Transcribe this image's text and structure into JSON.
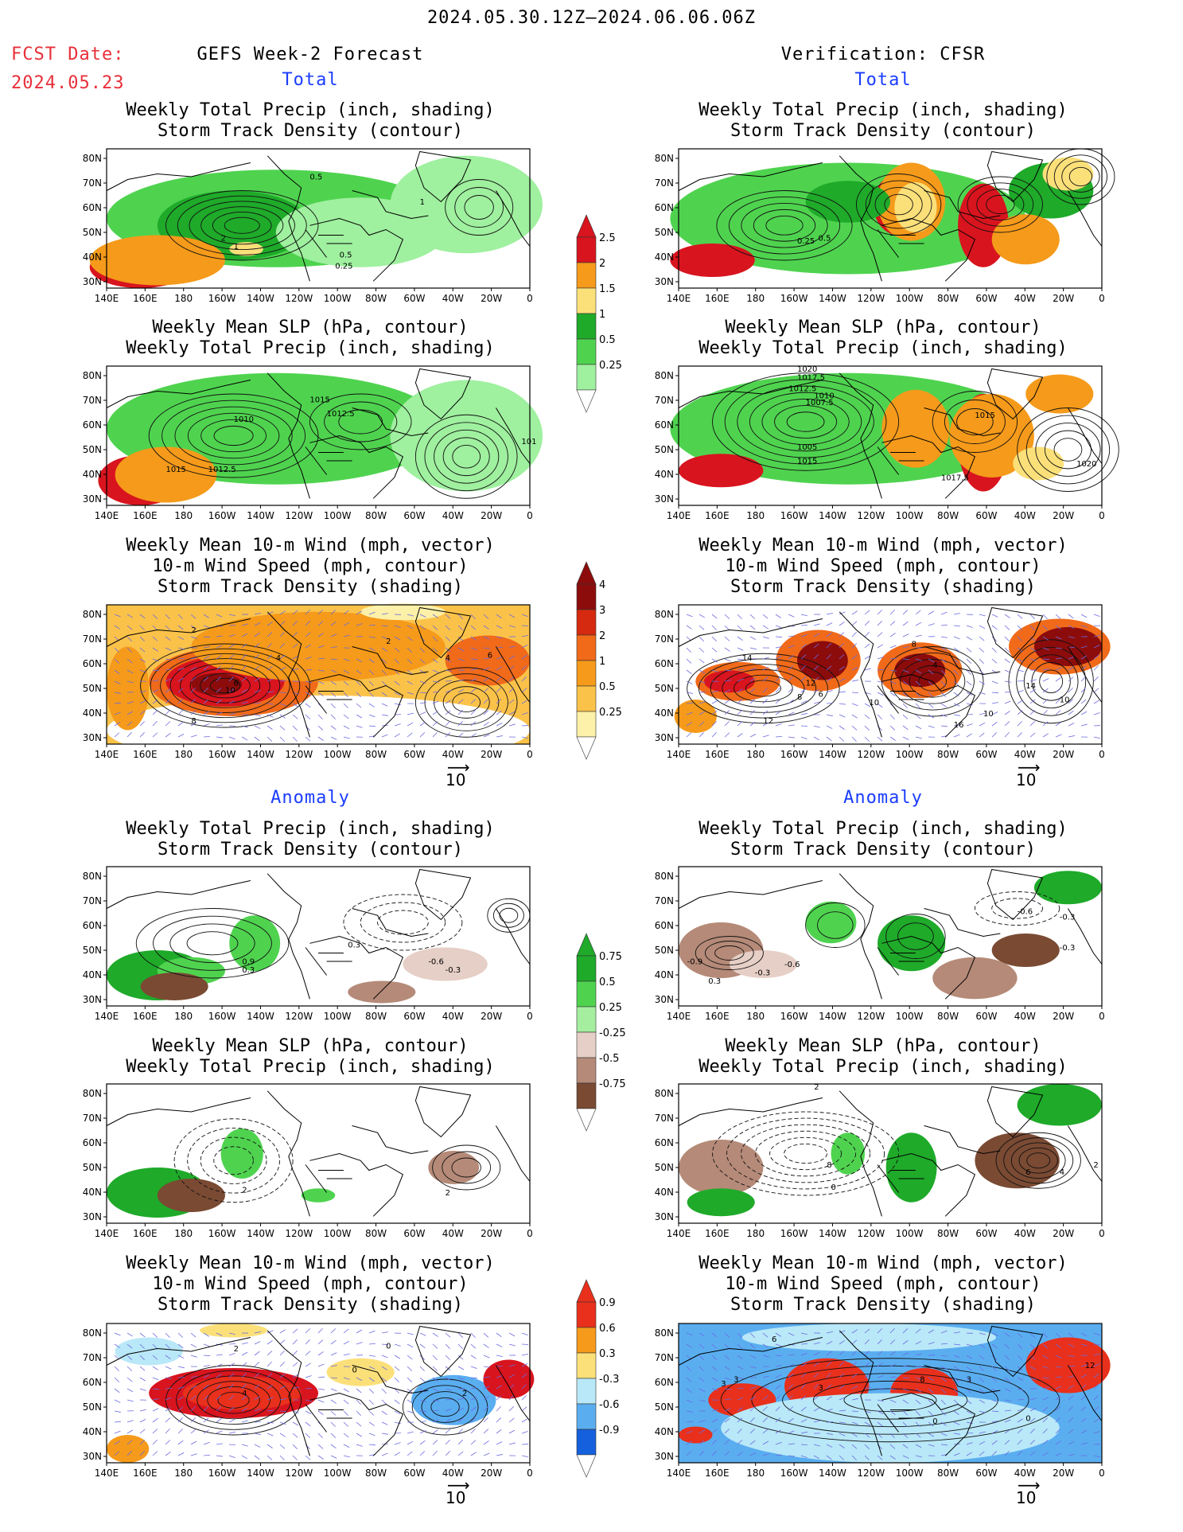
{
  "header": {
    "date_range": "2024.05.30.12Z–2024.06.06.06Z",
    "fcst_label": "FCST Date:",
    "fcst_date": "2024.05.23",
    "left_title": "GEFS Week-2 Forecast",
    "right_title": "Verification: CFSR"
  },
  "sections": {
    "total": "Total",
    "anomaly": "Anomaly"
  },
  "panel_titles": {
    "precip_storm": "Weekly Total Precip (inch, shading)\nStorm Track Density (contour)",
    "slp_precip": "Weekly Mean SLP (hPa, contour)\nWeekly Total Precip (inch, shading)",
    "wind_storm": "Weekly Mean 10-m Wind (mph, vector)\n10-m Wind Speed (mph, contour)\nStorm Track Density (shading)"
  },
  "axes": {
    "lon_ticks": [
      "140E",
      "160E",
      "180",
      "160W",
      "140W",
      "120W",
      "100W",
      "80W",
      "60W",
      "40W",
      "20W",
      "0"
    ],
    "lat_ticks": [
      "80N",
      "70N",
      "60N",
      "50N",
      "40N",
      "30N"
    ]
  },
  "vector_ref": "10",
  "colorbars": {
    "precip_total": {
      "labels": [
        "2.5",
        "2",
        "1.5",
        "1",
        "0.5",
        "0.25"
      ],
      "colors": [
        "#d8141e",
        "#f59a1a",
        "#fbe07a",
        "#1faa2a",
        "#4fd34f",
        "#9ff09f"
      ]
    },
    "storm_total": {
      "labels": [
        "4",
        "3",
        "2",
        "1",
        "0.5",
        "0.25"
      ],
      "colors": [
        "#8c0c0c",
        "#d52a10",
        "#f06a1a",
        "#f59a1a",
        "#fbc24a",
        "#fdf0a8"
      ]
    },
    "precip_anom": {
      "labels": [
        "0.75",
        "0.5",
        "0.25",
        "-0.25",
        "-0.5",
        "-0.75"
      ],
      "colors": [
        "#1faa2a",
        "#4fd34f",
        "#a5ee9f",
        "#e6cfc6",
        "#b58a78",
        "#7a4a33"
      ]
    },
    "storm_anom": {
      "labels": [
        "0.9",
        "0.6",
        "0.3",
        "-0.3",
        "-0.6",
        "-0.9"
      ],
      "colors": [
        "#e8301c",
        "#f59a1a",
        "#fbe07a",
        "#b9e8f8",
        "#5aaef0",
        "#1560dc"
      ]
    }
  },
  "contour_labels": {
    "fc_tot_precip": [
      "0.5",
      "1",
      "2",
      "1",
      "0.5",
      "0.25"
    ],
    "vf_tot_precip": [
      "0.25",
      "0.5"
    ],
    "fc_tot_slp": [
      "1015",
      "1012.5",
      "1010",
      "1015",
      "1012.5",
      "101"
    ],
    "vf_tot_slp": [
      "1020",
      "1017.5",
      "1012.5",
      "1010",
      "1007.5",
      "1005",
      "1015",
      "1015",
      "1017.5",
      "1020"
    ],
    "fc_tot_wind": [
      "2",
      "4",
      "2",
      "4",
      "6",
      "6",
      "10",
      "8"
    ],
    "vf_tot_wind": [
      "8",
      "6",
      "8",
      "4",
      "10",
      "16",
      "14",
      "12",
      "10",
      "14",
      "10",
      "12"
    ],
    "fc_anm_precip": [
      "0.9",
      "0.3",
      "0.3",
      "-0.6",
      "-0.3"
    ],
    "vf_anm_precip": [
      "-0.6",
      "-0.3",
      "-0.9",
      "-0.3",
      "-0.6",
      "-0.3",
      "0.3"
    ],
    "fc_anm_slp": [
      "2",
      "2"
    ],
    "vf_anm_slp": [
      "2",
      "8",
      "0",
      "6",
      "4",
      "2"
    ],
    "fc_anm_wind": [
      "2",
      "4",
      "0",
      "0",
      "2"
    ],
    "vf_anm_wind": [
      "6",
      "3",
      "3",
      "8",
      "3",
      "3",
      "0",
      "12",
      "0"
    ]
  }
}
